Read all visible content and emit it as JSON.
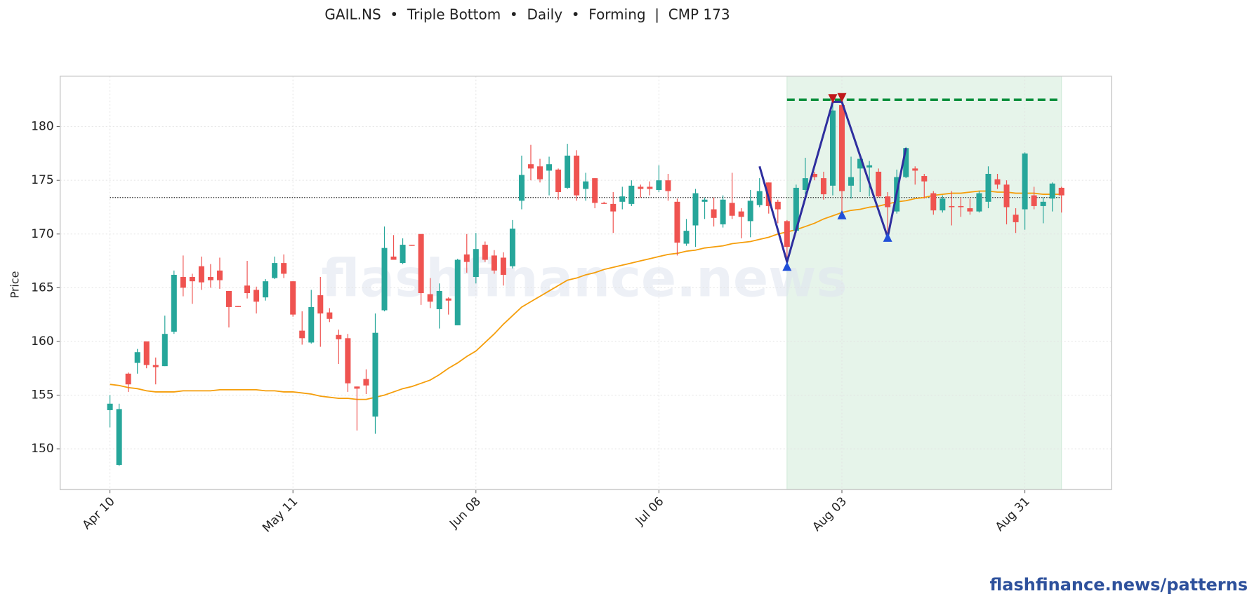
{
  "chart_data": {
    "type": "candlestick",
    "title": "GAIL.NS  •  Triple Bottom  •  Daily  •  Forming  |  CMP 173",
    "y_label": "Price",
    "watermark": "flashfinance.news",
    "footer": "flashfinance.news/patterns",
    "categories": [
      "Apr 10",
      null,
      null,
      null,
      null,
      null,
      null,
      null,
      null,
      null,
      null,
      null,
      null,
      null,
      null,
      null,
      null,
      null,
      null,
      null,
      "May 11",
      null,
      null,
      null,
      null,
      null,
      null,
      null,
      null,
      null,
      null,
      null,
      null,
      null,
      null,
      null,
      null,
      null,
      null,
      null,
      "Jun 08",
      null,
      null,
      null,
      null,
      null,
      null,
      null,
      null,
      null,
      null,
      null,
      null,
      null,
      null,
      null,
      null,
      null,
      null,
      null,
      "Jul 06",
      null,
      null,
      null,
      null,
      null,
      null,
      null,
      null,
      null,
      null,
      null,
      null,
      null,
      null,
      null,
      null,
      null,
      null,
      null,
      "Aug 03",
      null,
      null,
      null,
      null,
      null,
      null,
      null,
      null,
      null,
      null,
      null,
      null,
      null,
      null,
      null,
      null,
      null,
      null,
      null,
      "Aug 31",
      null,
      null,
      null,
      null
    ],
    "open": [
      153.6,
      148.5,
      157,
      158,
      160,
      157.8,
      157.7,
      160.9,
      166,
      166,
      167,
      166,
      166.6,
      164.7,
      163.3,
      165.2,
      164.8,
      164.1,
      165.9,
      167.3,
      165.6,
      161,
      159.9,
      164.3,
      162.7,
      160.6,
      160.3,
      155.8,
      156.5,
      153,
      162.9,
      167.9,
      167.3,
      169,
      170,
      164.4,
      163,
      164,
      161.5,
      168.1,
      166,
      169,
      168,
      167.8,
      167,
      173.1,
      176.5,
      176.3,
      175.9,
      176,
      174.3,
      177.3,
      174.2,
      175.2,
      172.9,
      172.8,
      173,
      172.8,
      174.4,
      174.4,
      174.1,
      175,
      173,
      169.1,
      170.8,
      173,
      172.3,
      170.9,
      172.9,
      172.1,
      171.2,
      172.7,
      174.8,
      173,
      171.2,
      170.3,
      174.1,
      175.6,
      175.2,
      174.5,
      182,
      174.5,
      176.1,
      176.2,
      175.8,
      173.5,
      172.1,
      175.3,
      176.1,
      175.4,
      173.8,
      172.2,
      172.6,
      172.6,
      172.4,
      172.1,
      173,
      175.1,
      174.6,
      171.8,
      172.3,
      173.6,
      172.6,
      173.3,
      174.3
    ],
    "high": [
      155,
      154.2,
      157.1,
      159.3,
      160,
      158.5,
      162.4,
      166.6,
      168,
      166.3,
      167.9,
      167.2,
      167.8,
      164.7,
      163.3,
      167.5,
      165.1,
      165.8,
      167.9,
      168.1,
      165.6,
      162.8,
      164.8,
      166,
      163.1,
      161.1,
      160.7,
      155.8,
      157.4,
      162.6,
      170.7,
      169.9,
      169.6,
      169,
      170,
      165.9,
      165.4,
      164.1,
      167.7,
      170,
      170.1,
      169.3,
      168.5,
      168.3,
      171.3,
      177.3,
      178.3,
      177,
      177.2,
      176.1,
      178.4,
      177.8,
      175.7,
      175.2,
      173,
      173.9,
      174.4,
      175,
      174.6,
      174.9,
      176.4,
      175.6,
      173.3,
      171.4,
      174.2,
      173.4,
      173.4,
      173.6,
      175.7,
      172.4,
      174.1,
      175.2,
      174.8,
      173.2,
      171.3,
      174.6,
      177.1,
      175.8,
      175.8,
      182.3,
      183,
      177.2,
      177.1,
      176.8,
      176.1,
      173.9,
      176,
      178.1,
      176.3,
      175.6,
      174,
      173.6,
      174,
      173.4,
      173.3,
      174,
      176.3,
      175.6,
      175,
      172.4,
      177.6,
      174.4,
      173.4,
      174.8,
      174.4
    ],
    "low": [
      152,
      148.4,
      155.3,
      157,
      157.5,
      156,
      157.7,
      160.7,
      164.2,
      163.5,
      164.8,
      165,
      164.9,
      161.3,
      163.2,
      164,
      162.6,
      163.8,
      165.8,
      165.9,
      162.3,
      159.7,
      159.8,
      159.5,
      161.8,
      157.9,
      155.3,
      151.7,
      155.1,
      151.4,
      162.8,
      167.6,
      167.2,
      168.9,
      163.4,
      163.1,
      161.2,
      162.5,
      161.5,
      166.4,
      165.4,
      167.4,
      166.3,
      165.2,
      166.8,
      172.3,
      175,
      174.8,
      173.6,
      173.2,
      174.2,
      173.1,
      173.1,
      172.4,
      172.8,
      170.1,
      172.3,
      172.6,
      173.4,
      173.6,
      173.9,
      173.1,
      168,
      168.9,
      168.8,
      171.4,
      170.7,
      170.6,
      171.4,
      169.6,
      169.7,
      172.5,
      171.9,
      171,
      167.5,
      170.1,
      173.7,
      175,
      173.2,
      173.6,
      171.8,
      173.3,
      173.9,
      173.5,
      173.4,
      169.8,
      171.9,
      175.2,
      174.6,
      173.3,
      171.8,
      172,
      170.8,
      171.6,
      171.8,
      172,
      172.4,
      174.2,
      170.9,
      170.1,
      170.4,
      172.3,
      171,
      172.1,
      172
    ],
    "close": [
      154.2,
      153.7,
      156,
      159,
      157.8,
      157.6,
      160.7,
      166.2,
      165,
      165.6,
      165.5,
      165.7,
      165.7,
      163.2,
      163.2,
      164.5,
      163.7,
      165.6,
      167.3,
      166.3,
      162.5,
      160.3,
      163.2,
      162.6,
      162.1,
      160.2,
      156.1,
      155.6,
      155.9,
      160.8,
      168.7,
      167.6,
      169,
      168.9,
      164.5,
      163.7,
      164.7,
      163.8,
      167.6,
      167.4,
      168.6,
      167.6,
      166.6,
      166.2,
      170.5,
      175.5,
      176.1,
      175.1,
      176.5,
      173.9,
      177.3,
      173.6,
      174.9,
      172.9,
      172.8,
      172.1,
      173.5,
      174.5,
      174.2,
      174.2,
      175,
      174,
      169.2,
      170.3,
      173.8,
      173.2,
      171.5,
      173.2,
      171.7,
      171.6,
      173.1,
      174,
      172.6,
      172.3,
      168.8,
      174.3,
      175.2,
      175.3,
      173.7,
      181.5,
      174,
      175.3,
      177,
      176.4,
      173.5,
      172.5,
      175.3,
      178,
      175.9,
      174.9,
      172.2,
      173.3,
      172.5,
      172.5,
      172.1,
      173.8,
      175.6,
      174.6,
      172.5,
      171.1,
      177.5,
      172.6,
      173,
      174.7,
      173.6
    ],
    "up_color": "#26a69a",
    "down_color": "#ef5350",
    "moving_average": {
      "color": "#f59e0b",
      "values": [
        156.0,
        155.9,
        155.7,
        155.6,
        155.4,
        155.3,
        155.3,
        155.3,
        155.4,
        155.4,
        155.4,
        155.4,
        155.5,
        155.5,
        155.5,
        155.5,
        155.5,
        155.4,
        155.4,
        155.3,
        155.3,
        155.2,
        155.1,
        154.9,
        154.8,
        154.7,
        154.7,
        154.6,
        154.6,
        154.8,
        155.0,
        155.3,
        155.6,
        155.8,
        156.1,
        156.4,
        156.9,
        157.5,
        158.0,
        158.6,
        159.1,
        159.9,
        160.7,
        161.6,
        162.4,
        163.2,
        163.7,
        164.2,
        164.7,
        165.2,
        165.7,
        165.9,
        166.2,
        166.4,
        166.7,
        166.9,
        167.1,
        167.3,
        167.5,
        167.7,
        167.9,
        168.1,
        168.2,
        168.4,
        168.5,
        168.7,
        168.8,
        168.9,
        169.1,
        169.2,
        169.3,
        169.5,
        169.7,
        170.0,
        170.2,
        170.4,
        170.7,
        171.0,
        171.4,
        171.7,
        172.0,
        172.2,
        172.3,
        172.5,
        172.6,
        172.8,
        173.0,
        173.1,
        173.3,
        173.4,
        173.6,
        173.7,
        173.8,
        173.8,
        173.9,
        174.0,
        174.0,
        173.9,
        173.9,
        173.8,
        173.8,
        173.8,
        173.7,
        173.7,
        173.7
      ]
    },
    "reference_level": {
      "value": 173.4,
      "color": "#444444"
    },
    "pattern_window": {
      "start": 74,
      "end": 104,
      "color": "#e6f4ea"
    },
    "resistance": {
      "value": 182.5,
      "color": "#0a8f3c"
    },
    "zigzag": {
      "color": "#2e2e9e",
      "x": [
        71,
        74,
        79,
        80,
        85,
        87
      ],
      "values": [
        176.3,
        167.4,
        182.3,
        182.3,
        169.7,
        178.0
      ]
    },
    "pattern_lows": {
      "color": "#2150d8",
      "x": [
        74,
        80,
        85
      ],
      "values": [
        167.0,
        171.8,
        169.7
      ]
    },
    "pattern_highs": {
      "color": "#c0181a",
      "x": [
        79,
        80
      ],
      "values": [
        182.6,
        182.7
      ]
    },
    "ylim": [
      146.2,
      184.7
    ],
    "yticks": [
      150,
      155,
      160,
      165,
      170,
      175,
      180
    ],
    "grid": true
  }
}
